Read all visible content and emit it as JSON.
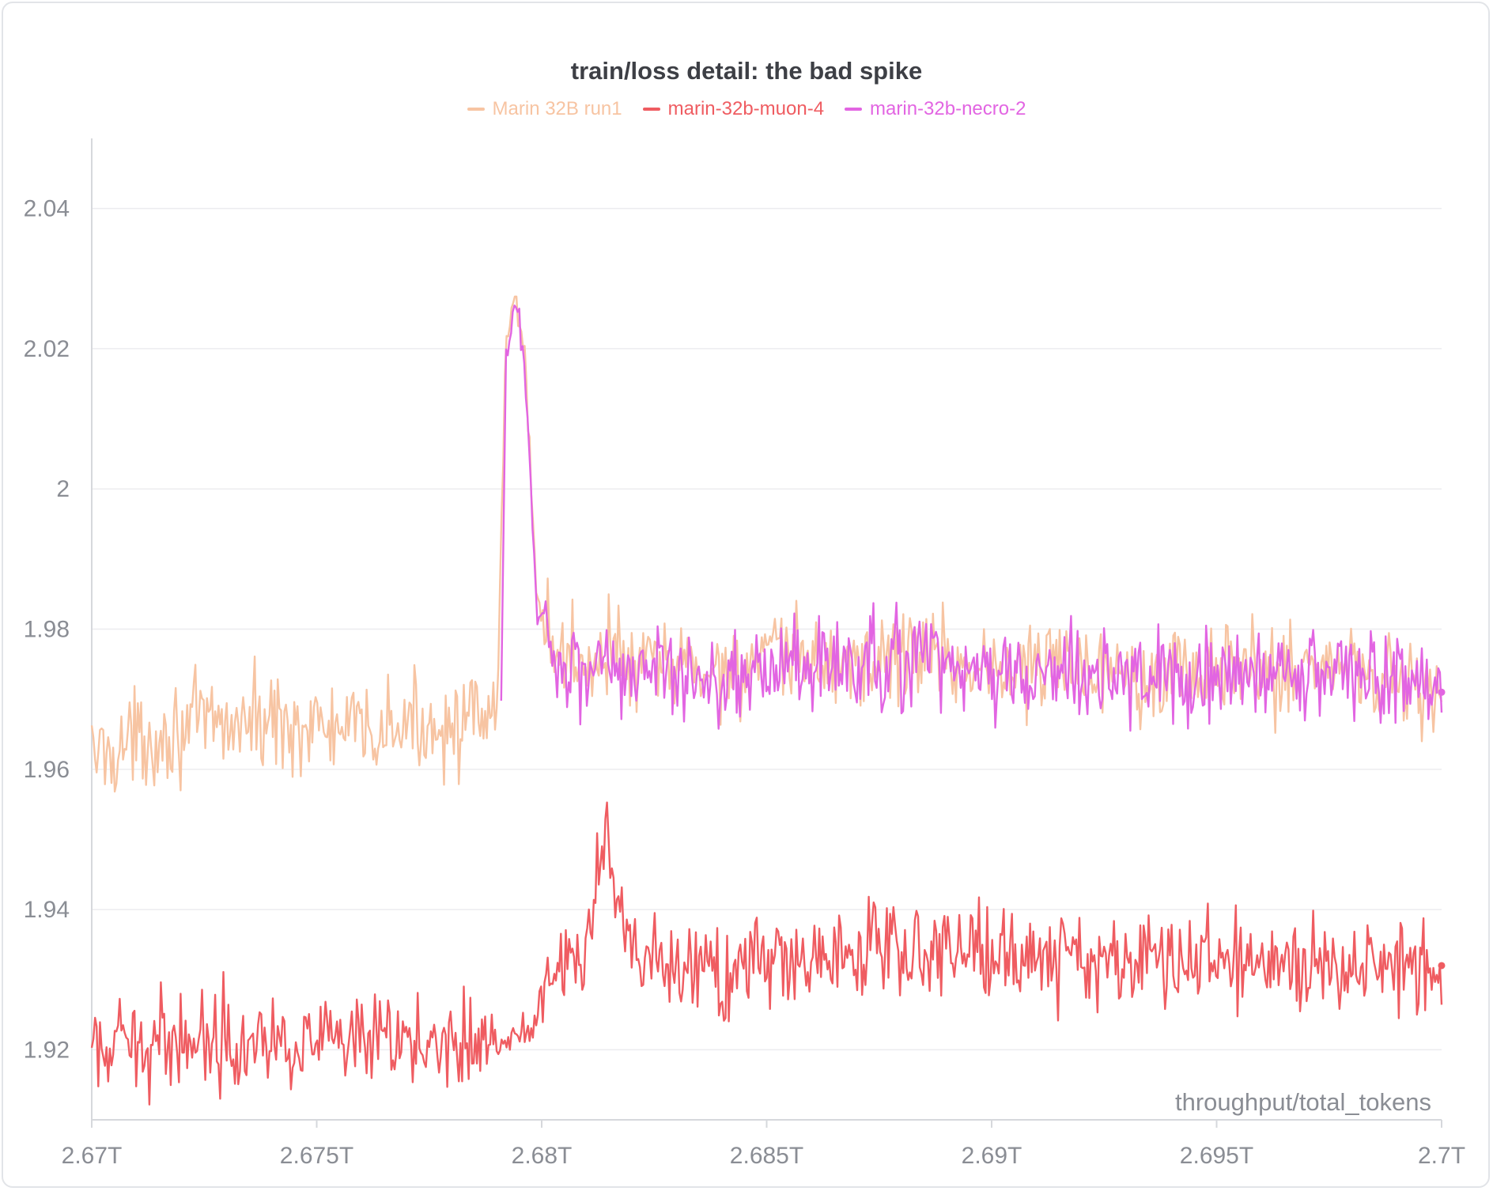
{
  "chart_data": {
    "type": "line",
    "title": "train/loss detail: the bad spike",
    "xlabel": "throughput/total_tokens",
    "ylabel": "",
    "x_ticks": [
      "2.67T",
      "2.675T",
      "2.68T",
      "2.685T",
      "2.69T",
      "2.695T",
      "2.7T"
    ],
    "y_ticks": [
      "1.92",
      "1.94",
      "1.96",
      "1.98",
      "2",
      "2.02",
      "2.04"
    ],
    "xlim_T": [
      2.67,
      2.7
    ],
    "ylim": [
      1.91,
      2.05
    ],
    "grid": true,
    "legend_position": "top",
    "series": [
      {
        "name": "Marin 32B run1",
        "color": "#f7c4a2",
        "x_T": [
          2.67,
          2.672,
          2.674,
          2.676,
          2.678,
          2.679,
          2.6792,
          2.6794,
          2.6796,
          2.6799,
          2.6802,
          2.6806,
          2.681,
          2.6815,
          2.682,
          2.683,
          2.684,
          2.6855,
          2.687,
          2.6885,
          2.69,
          2.692,
          2.694,
          2.696,
          2.698,
          2.7
        ],
        "values": [
          1.962,
          1.966,
          1.967,
          1.965,
          1.967,
          1.966,
          2.02,
          2.027,
          2.022,
          1.984,
          1.978,
          1.976,
          1.975,
          1.978,
          1.974,
          1.975,
          1.974,
          1.976,
          1.975,
          1.977,
          1.974,
          1.975,
          1.974,
          1.974,
          1.975,
          1.971
        ]
      },
      {
        "name": "marin-32b-muon-4",
        "color": "#ef5c61",
        "x_T": [
          2.67,
          2.672,
          2.674,
          2.676,
          2.678,
          2.6791,
          2.6799,
          2.68,
          2.681,
          2.6814,
          2.682,
          2.684,
          2.686,
          2.688,
          2.69,
          2.692,
          2.694,
          2.696,
          2.698,
          2.7
        ],
        "values": [
          1.919,
          1.922,
          1.922,
          1.92,
          1.922,
          1.921,
          1.923,
          1.932,
          1.933,
          1.95,
          1.932,
          1.931,
          1.933,
          1.935,
          1.934,
          1.933,
          1.933,
          1.932,
          1.933,
          1.932
        ]
      },
      {
        "name": "marin-32b-necro-2",
        "color": "#e265e2",
        "x_T": [
          2.6791,
          2.6792,
          2.6794,
          2.6796,
          2.6799,
          2.6802,
          2.6806,
          2.681,
          2.6815,
          2.682,
          2.683,
          2.684,
          2.6855,
          2.687,
          2.6885,
          2.69,
          2.692,
          2.694,
          2.696,
          2.698,
          2.7
        ],
        "values": [
          1.968,
          2.018,
          2.026,
          2.02,
          1.983,
          1.977,
          1.975,
          1.974,
          1.977,
          1.973,
          1.974,
          1.973,
          1.975,
          1.974,
          1.976,
          1.973,
          1.974,
          1.973,
          1.973,
          1.974,
          1.971
        ]
      }
    ]
  }
}
